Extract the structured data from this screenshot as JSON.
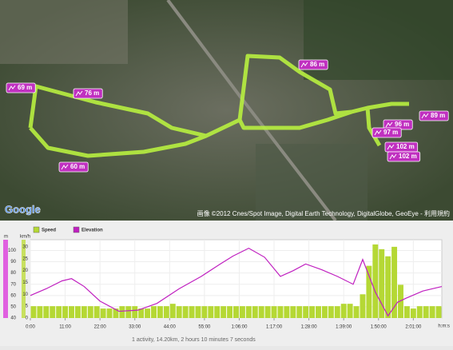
{
  "map": {
    "logo": "Google",
    "copyright": "画像 ©2012 Cnes/Spot Image, Digital Earth Technology, DigitalGlobe, GeoEye - 利用規約",
    "markers": [
      "69 m",
      "76 m",
      "60 m",
      "86 m",
      "96 m",
      "89 m",
      "97 m",
      "102 m",
      "102 m"
    ]
  },
  "chart_data": {
    "type": "combo",
    "xlim": [
      0,
      130
    ],
    "xticks": [
      {
        "value": 0,
        "label": "0:00"
      },
      {
        "value": 11,
        "label": "11:00"
      },
      {
        "value": 22,
        "label": "22:00"
      },
      {
        "value": 33,
        "label": "33:00"
      },
      {
        "value": 44,
        "label": "44:00"
      },
      {
        "value": 55,
        "label": "55:00"
      },
      {
        "value": 66,
        "label": "1:06:00"
      },
      {
        "value": 77,
        "label": "1:17:00"
      },
      {
        "value": 88,
        "label": "1:28:00"
      },
      {
        "value": 99,
        "label": "1:39:00"
      },
      {
        "value": 110,
        "label": "1:50:00"
      },
      {
        "value": 121,
        "label": "2:01:00"
      }
    ],
    "x_label": "h:m:s",
    "y_label": "m",
    "ylim": [
      40,
      106
    ],
    "yticks": [
      40,
      50,
      60,
      70,
      80,
      90,
      100
    ],
    "y2_label": "km/h",
    "y2lim": [
      0,
      31.3
    ],
    "y2ticks": [
      0,
      5,
      10,
      15,
      20,
      25,
      30
    ],
    "series": [
      {
        "name": "Speed",
        "type": "bar",
        "axis": "y2",
        "color": "#b5d834",
        "x": [
          0,
          2,
          4,
          6,
          8,
          10,
          12,
          14,
          16,
          18,
          20,
          22,
          24,
          26,
          28,
          30,
          32,
          34,
          36,
          38,
          40,
          42,
          44,
          46,
          48,
          50,
          52,
          54,
          56,
          58,
          60,
          62,
          64,
          66,
          68,
          70,
          72,
          74,
          76,
          78,
          80,
          82,
          84,
          86,
          88,
          90,
          92,
          94,
          96,
          98,
          100,
          102,
          104,
          106,
          108,
          110,
          112,
          114,
          116,
          118,
          120,
          122,
          124,
          126,
          128
        ],
        "values": [
          5,
          5,
          5,
          5,
          5,
          5,
          5,
          5,
          5,
          5,
          5,
          4,
          4,
          4,
          5,
          5,
          5,
          4,
          4,
          5,
          5,
          5,
          6,
          5,
          5,
          5,
          5,
          5,
          5,
          5,
          5,
          5,
          5,
          5,
          5,
          5,
          5,
          5,
          5,
          5,
          5,
          5,
          5,
          5,
          5,
          5,
          5,
          5,
          5,
          6,
          6,
          5,
          10,
          22,
          31,
          29,
          26,
          30,
          14,
          5,
          4,
          5,
          5,
          5,
          5
        ]
      },
      {
        "name": "Elevation",
        "type": "line",
        "color": "#c020c0",
        "x": [
          0,
          5,
          10,
          13,
          17,
          22,
          28,
          34,
          40,
          47,
          54,
          60,
          64,
          69,
          74,
          79,
          83,
          87,
          92,
          97,
          102,
          105,
          109,
          113,
          116,
          119,
          124,
          130
        ],
        "values": [
          60,
          66,
          73,
          75,
          68,
          55,
          46,
          47,
          53,
          66,
          77,
          88,
          95,
          102,
          94,
          77,
          82,
          88,
          83,
          77,
          70,
          92,
          63,
          42,
          54,
          58,
          64,
          68
        ]
      }
    ]
  },
  "footer": "1 activity, 14.20km, 2 hours 10 minutes 7 seconds"
}
